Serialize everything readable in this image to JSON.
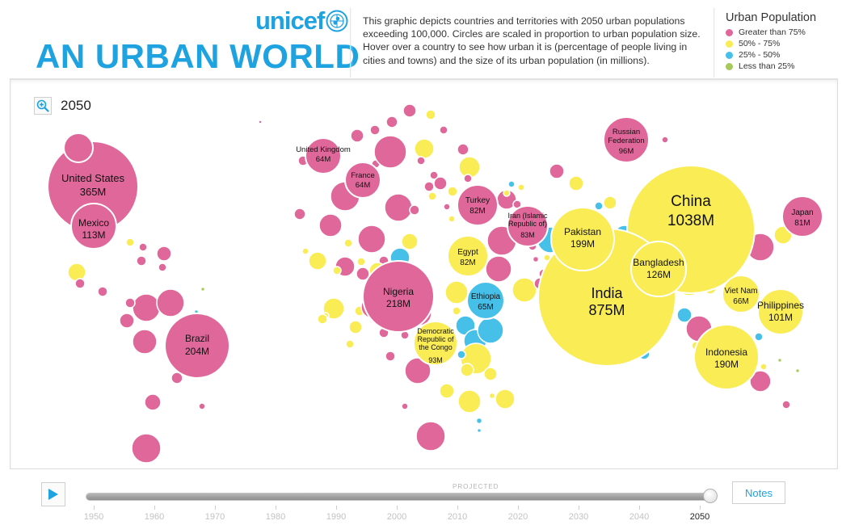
{
  "header": {
    "logo_text": "unicef",
    "title": "AN URBAN WORLD",
    "description": "This graphic depicts countries and territories with 2050 urban populations exceeding 100,000. Circles are scaled in proportion to urban population size. Hover over a country to see how urban it is (percentage of people living in cities and towns) and the size of its urban population (in millions)."
  },
  "legend": {
    "title": "Urban Population",
    "items": [
      {
        "label": "Greater than 75%",
        "color": "#e0679a"
      },
      {
        "label": "50% - 75%",
        "color": "#f9ec55"
      },
      {
        "label": "25% - 50%",
        "color": "#46c0e9"
      },
      {
        "label": "Less than 25%",
        "color": "#a6c95a"
      }
    ]
  },
  "map": {
    "year": "2050",
    "zoom_icon": "zoom-in-icon"
  },
  "timeline": {
    "play_icon": "play-icon",
    "projected_label": "PROJECTED",
    "current_year": "2050",
    "years": [
      "1950",
      "1960",
      "1970",
      "1980",
      "1990",
      "2000",
      "2010",
      "2020",
      "2030",
      "2040",
      "2050"
    ],
    "progress": 1.0,
    "notes_label": "Notes"
  },
  "labeled_countries": [
    {
      "id": "united-states",
      "name": "United States",
      "value": "365M",
      "category": "Greater than 75%"
    },
    {
      "id": "mexico",
      "name": "Mexico",
      "value": "113M",
      "category": "Greater than 75%"
    },
    {
      "id": "brazil",
      "name": "Brazil",
      "value": "204M",
      "category": "Greater than 75%"
    },
    {
      "id": "united-kingdom",
      "name": "United Kingdom",
      "value": "64M",
      "category": "Greater than 75%"
    },
    {
      "id": "france",
      "name": "France",
      "value": "64M",
      "category": "Greater than 75%"
    },
    {
      "id": "turkey",
      "name": "Turkey",
      "value": "82M",
      "category": "Greater than 75%"
    },
    {
      "id": "iran",
      "name": "Iran (Islamic Republic of)",
      "value": "83M",
      "category": "Greater than 75%"
    },
    {
      "id": "egypt",
      "name": "Egypt",
      "value": "82M",
      "category": "50% - 75%"
    },
    {
      "id": "nigeria",
      "name": "Nigeria",
      "value": "218M",
      "category": "Greater than 75%"
    },
    {
      "id": "ethiopia",
      "name": "Ethiopia",
      "value": "65M",
      "category": "25% - 50%"
    },
    {
      "id": "drc",
      "name": "Democratic Republic of the Congo",
      "value": "93M",
      "category": "50% - 75%"
    },
    {
      "id": "pakistan",
      "name": "Pakistan",
      "value": "199M",
      "category": "50% - 75%"
    },
    {
      "id": "india",
      "name": "India",
      "value": "875M",
      "category": "50% - 75%"
    },
    {
      "id": "bangladesh",
      "name": "Bangladesh",
      "value": "126M",
      "category": "50% - 75%"
    },
    {
      "id": "china",
      "name": "China",
      "value": "1038M",
      "category": "50% - 75%"
    },
    {
      "id": "russia",
      "name": "Russian Federation",
      "value": "96M",
      "category": "Greater than 75%"
    },
    {
      "id": "japan",
      "name": "Japan",
      "value": "81M",
      "category": "Greater than 75%"
    },
    {
      "id": "viet-nam",
      "name": "Viet Nam",
      "value": "66M",
      "category": "50% - 75%"
    },
    {
      "id": "philippines",
      "name": "Philippines",
      "value": "101M",
      "category": "50% - 75%"
    },
    {
      "id": "indonesia",
      "name": "Indonesia",
      "value": "190M",
      "category": "50% - 75%"
    }
  ]
}
